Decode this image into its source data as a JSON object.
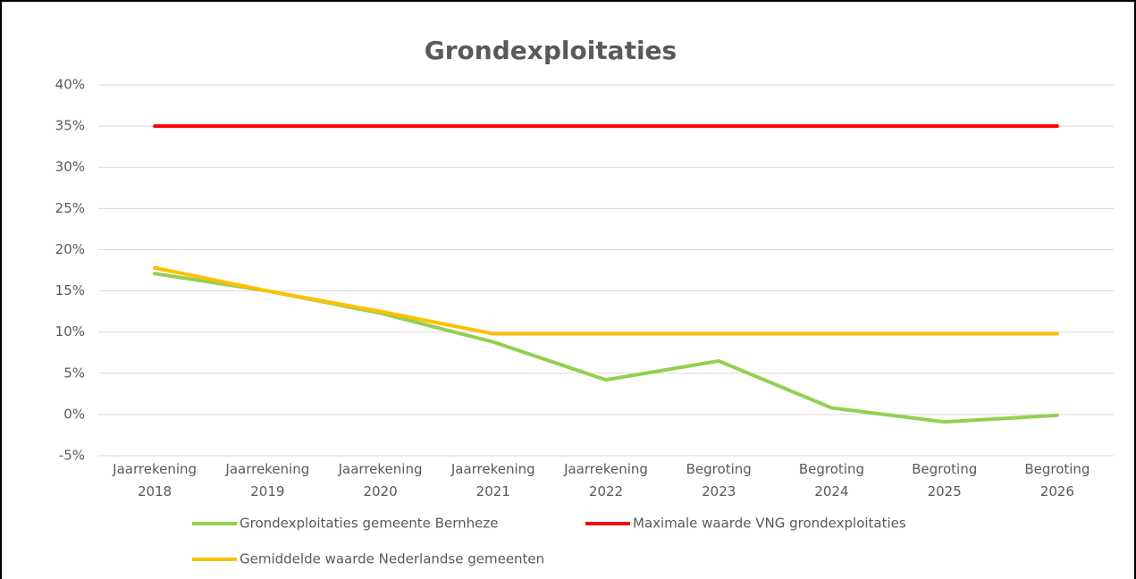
{
  "chart_data": {
    "type": "line",
    "title": "Grondexploitaties",
    "categories": [
      "Jaarrekening 2018",
      "Jaarrekening 2019",
      "Jaarrekening 2020",
      "Jaarrekening 2021",
      "Jaarrekening 2022",
      "Begroting 2023",
      "Begroting 2024",
      "Begroting 2025",
      "Begroting 2026"
    ],
    "series": [
      {
        "name": "Grondexploitaties gemeente Bernheze",
        "color": "#92d050",
        "values": [
          17.1,
          15.0,
          12.3,
          8.8,
          4.2,
          6.5,
          0.8,
          -0.9,
          -0.1
        ]
      },
      {
        "name": "Maximale waarde VNG grondexploitaties",
        "color": "#ff0000",
        "values": [
          35,
          35,
          35,
          35,
          35,
          35,
          35,
          35,
          35
        ]
      },
      {
        "name": "Gemiddelde waarde Nederlandse gemeenten",
        "color": "#ffc000",
        "values": [
          17.8,
          15.0,
          12.5,
          9.8,
          9.8,
          9.8,
          9.8,
          9.8,
          9.8
        ]
      }
    ],
    "ylim": [
      -5,
      40
    ],
    "yticks": [
      {
        "value": -5,
        "label": "-5%"
      },
      {
        "value": 0,
        "label": "0%"
      },
      {
        "value": 5,
        "label": "5%"
      },
      {
        "value": 10,
        "label": "10%"
      },
      {
        "value": 15,
        "label": "15%"
      },
      {
        "value": 20,
        "label": "20%"
      },
      {
        "value": 25,
        "label": "25%"
      },
      {
        "value": 30,
        "label": "30%"
      },
      {
        "value": 35,
        "label": "35%"
      },
      {
        "value": 40,
        "label": "40%"
      }
    ],
    "grid": true,
    "legend": "bottom"
  }
}
